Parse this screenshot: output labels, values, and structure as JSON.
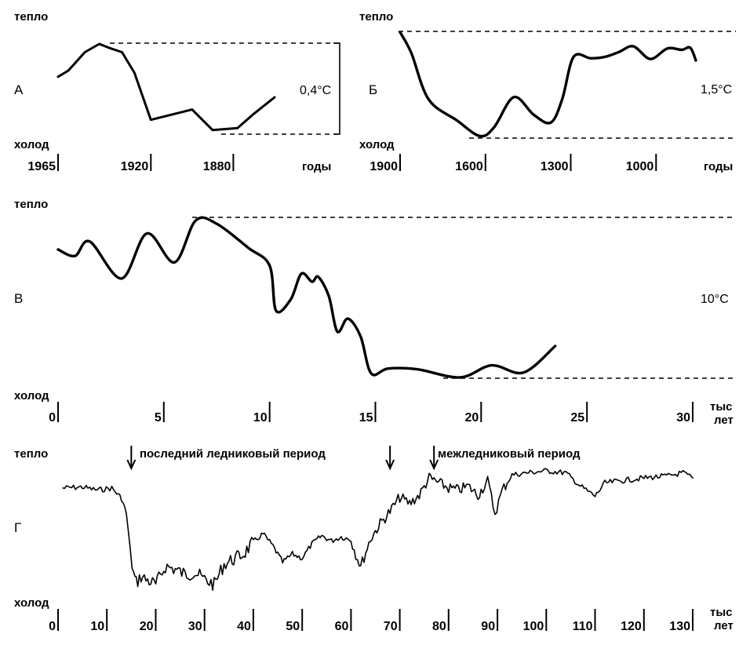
{
  "labels": {
    "warm": "тепло",
    "cold": "холод"
  },
  "chart_data": [
    {
      "id": "A",
      "type": "line",
      "title": "А",
      "xlabel": "годы",
      "amplitude": "0,4°C",
      "x_ticks": [
        "1965",
        "1920",
        "1880"
      ],
      "x": [
        1965,
        1960,
        1952,
        1945,
        1940,
        1934,
        1928,
        1920,
        1900,
        1890,
        1878,
        1870,
        1860
      ],
      "y": [
        0.28,
        0.31,
        0.4,
        0.44,
        0.42,
        0.4,
        0.3,
        0.07,
        0.12,
        0.02,
        0.03,
        0.1,
        0.18
      ]
    },
    {
      "id": "B",
      "type": "line",
      "title": "Б",
      "xlabel": "годы",
      "amplitude": "1,5°C",
      "x_ticks": [
        "1900",
        "1600",
        "1300",
        "1000"
      ],
      "x": [
        1900,
        1860,
        1800,
        1700,
        1620,
        1570,
        1500,
        1430,
        1370,
        1330,
        1290,
        1230,
        1180,
        1130,
        1080,
        1020,
        960,
        910,
        880,
        860
      ],
      "y": [
        1.5,
        1.2,
        0.55,
        0.25,
        0.03,
        0.15,
        0.58,
        0.33,
        0.22,
        0.55,
        1.15,
        1.13,
        1.15,
        1.22,
        1.3,
        1.12,
        1.27,
        1.25,
        1.28,
        1.1
      ]
    },
    {
      "id": "V",
      "type": "line",
      "title": "В",
      "xlabel": "тыс лет",
      "amplitude": "10°C",
      "x_ticks": [
        "0",
        "5",
        "10",
        "15",
        "20",
        "25",
        "30"
      ],
      "x": [
        0,
        0.8,
        1.5,
        3.0,
        4.2,
        5.5,
        6.5,
        7.5,
        9.0,
        10.0,
        10.3,
        11.0,
        11.5,
        12.0,
        12.3,
        12.8,
        13.2,
        13.7,
        14.3,
        14.8,
        15.6,
        17.0,
        19.0,
        20.5,
        22.0,
        23.5
      ],
      "y": [
        8.0,
        7.6,
        8.5,
        6.2,
        9.0,
        7.2,
        9.8,
        9.6,
        8.1,
        7.0,
        4.2,
        4.9,
        6.5,
        6.0,
        6.3,
        5.1,
        2.9,
        3.7,
        2.6,
        0.3,
        0.6,
        0.55,
        0.05,
        0.8,
        0.35,
        2.0
      ]
    },
    {
      "id": "G",
      "type": "line",
      "title": "Г",
      "xlabel": "тыс лет",
      "x_ticks": [
        "0",
        "10",
        "20",
        "30",
        "40",
        "50",
        "60",
        "70",
        "80",
        "90",
        "100",
        "110",
        "120",
        "130"
      ],
      "annotations": [
        {
          "text": "последний ледниковый период",
          "x": 15
        },
        {
          "text": "межледниковый период",
          "x": 77
        }
      ],
      "arrow_positions": [
        15,
        68,
        77
      ],
      "x": [
        1,
        5,
        8,
        11,
        13,
        14,
        14.8,
        15.5,
        16,
        17,
        18,
        20,
        22,
        24,
        26,
        28,
        30,
        32,
        34,
        36,
        38,
        40,
        42,
        44,
        46,
        48,
        50,
        52,
        54,
        56,
        58,
        60,
        61,
        62,
        64,
        66,
        68,
        70,
        72,
        74,
        76,
        78,
        80,
        82,
        84,
        86,
        88,
        89.5,
        91,
        93,
        96,
        100,
        104,
        107,
        110,
        112,
        115,
        120,
        125,
        128,
        130
      ],
      "y": [
        0.95,
        0.96,
        0.93,
        0.95,
        0.85,
        0.7,
        0.3,
        0.1,
        0.02,
        0.08,
        0.05,
        0.0,
        0.18,
        0.15,
        0.1,
        0.12,
        0.05,
        0.0,
        0.2,
        0.25,
        0.3,
        0.42,
        0.5,
        0.38,
        0.22,
        0.3,
        0.26,
        0.4,
        0.48,
        0.43,
        0.47,
        0.44,
        0.3,
        0.18,
        0.45,
        0.6,
        0.72,
        0.86,
        0.8,
        0.88,
        1.05,
        1.0,
        0.95,
        0.93,
        0.97,
        0.88,
        1.02,
        0.7,
        0.93,
        1.08,
        1.1,
        1.12,
        1.1,
        0.97,
        0.87,
        1.0,
        1.02,
        1.05,
        1.07,
        1.1,
        1.05
      ]
    }
  ]
}
